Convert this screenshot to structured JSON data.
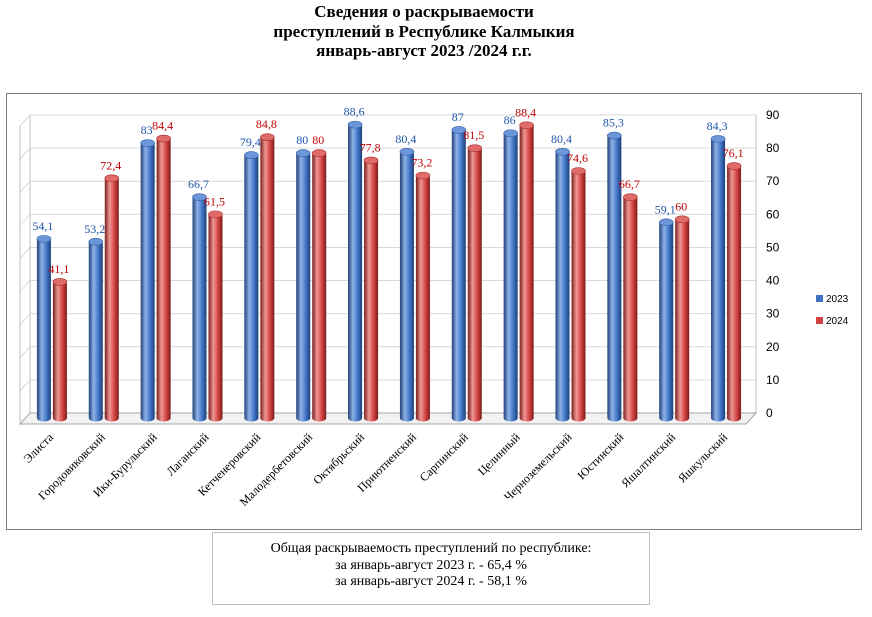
{
  "title": {
    "line1": "Сведения о раскрываемости",
    "line2": "преступлений в  Республике Калмыкия",
    "line3": "январь-август 2023 /2024 г.г."
  },
  "summary": {
    "line1": "Общая раскрываемость преступлений  по республике:",
    "line2": "за январь-август 2023 г. - 65,4 %",
    "line3": "за январь-август 2024 г. - 58,1 %"
  },
  "colors": {
    "series_2023": "#3f74c5",
    "series_2024": "#d2413f",
    "label_2023": "#1f56a8",
    "label_2024": "#c00000"
  },
  "chart_data": {
    "type": "bar",
    "style": "3d-cylinder",
    "categories": [
      "Элиста",
      "Городовиковский",
      "Ики-Бурульский",
      "Лаганский",
      "Кетченеровский",
      "Малодербетовский",
      "Октябрьский",
      "Приютненский",
      "Сарпинский",
      "Целинный",
      "Черноземельский",
      "Юстинский",
      "Яшалтинский",
      "Яшкульский"
    ],
    "series": [
      {
        "name": "2023",
        "values": [
          54.1,
          53.2,
          83,
          66.7,
          79.4,
          80,
          88.6,
          80.4,
          87,
          86,
          80.4,
          85.3,
          59.1,
          84.3
        ],
        "labels": [
          "54,1",
          "53,2",
          "83",
          "66,7",
          "79,4",
          "80",
          "88,6",
          "80,4",
          "87",
          "86",
          "80,4",
          "85,3",
          "59,1",
          "84,3"
        ]
      },
      {
        "name": "2024",
        "values": [
          41.1,
          72.4,
          84.4,
          61.5,
          84.8,
          80,
          77.8,
          73.2,
          81.5,
          88.4,
          74.6,
          66.7,
          60,
          76.1
        ],
        "labels": [
          "41,1",
          "72,4",
          "84,4",
          "61,5",
          "84,8",
          "80",
          "77,8",
          "73,2",
          "81,5",
          "88,4",
          "74,6",
          "66,7",
          "60",
          "76,1"
        ]
      }
    ],
    "yticks": [
      "0",
      "10",
      "20",
      "30",
      "40",
      "50",
      "60",
      "70",
      "80",
      "90"
    ],
    "ylim": [
      0,
      90
    ],
    "y_axis_side": "right",
    "grid": true,
    "legend_position": "right"
  }
}
